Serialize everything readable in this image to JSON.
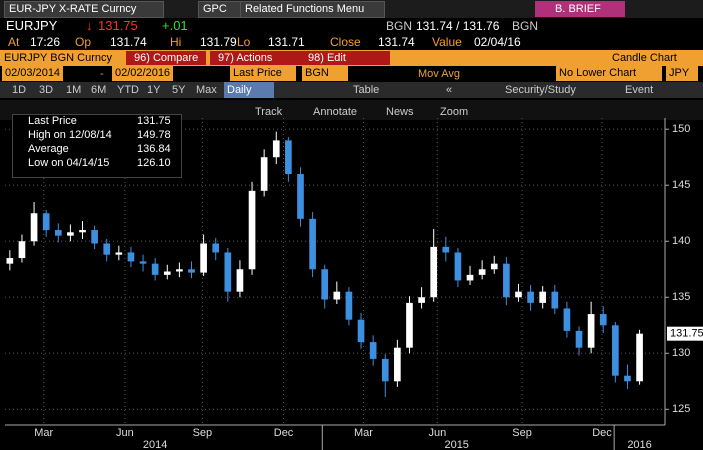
{
  "header": {
    "security": "EUR-JPY X-RATE Curncy",
    "gpc": "GPC",
    "menu": "Related Functions Menu",
    "brief": "B. BRIEF"
  },
  "quote": {
    "ticker": "EURJPY",
    "arrow": "↓",
    "last": "131.75",
    "change": "+.01",
    "bid_src": "BGN",
    "bidask": "131.74 / 131.76",
    "ask_src": "BGN"
  },
  "stats": [
    [
      "At",
      "17:26"
    ],
    [
      "Op",
      "131.74"
    ],
    [
      "Hi",
      "131.79"
    ],
    [
      "Lo",
      "131.71"
    ],
    [
      "Close",
      "131.74"
    ],
    [
      "Value",
      "02/04/16"
    ]
  ],
  "toolbar": {
    "name": "EURJPY BGN Curncy",
    "buttons": [
      "96) Compare",
      "97) Actions",
      "98) Edit"
    ],
    "chart_type": "Candle Chart"
  },
  "settings": {
    "start": "02/03/2014",
    "dash": "-",
    "end": "02/02/2016",
    "field": "Last Price",
    "source": "BGN",
    "study": "Mov Avg",
    "lower": "No Lower Chart",
    "currency": "JPY"
  },
  "periods": [
    "1D",
    "3D",
    "1M",
    "6M",
    "YTD",
    "1Y",
    "5Y",
    "Max"
  ],
  "frequency": "Daily",
  "table": "Table",
  "collapse": "«",
  "security_study": "Security/Study",
  "event": "Event",
  "tools": [
    "Track",
    "Annotate",
    "News",
    "Zoom"
  ],
  "legend": [
    [
      "Last Price",
      "131.75"
    ],
    [
      "High on 12/08/14",
      "149.78"
    ],
    [
      "Average",
      "136.84"
    ],
    [
      "Low on 04/14/15",
      "126.10"
    ]
  ],
  "chart_data": {
    "type": "candlestick",
    "price_tag": "131.75",
    "open": [
      138.0,
      138.5,
      140.0,
      142.5,
      141.0,
      140.5,
      140.8,
      141.0,
      139.8,
      138.8,
      139.0,
      138.2,
      138.0,
      137.0,
      137.3,
      137.5,
      137.2,
      139.8,
      139.0,
      135.5,
      137.5,
      144.5,
      147.5,
      149.0,
      146.0,
      142.0,
      137.5,
      134.8,
      135.5,
      133.0,
      131.0,
      129.5,
      127.5,
      130.5,
      134.5,
      135.0,
      139.5,
      139.0,
      136.5,
      137.0,
      137.5,
      138.0,
      135.0,
      135.5,
      134.5,
      135.5,
      134.0,
      132.0,
      130.5,
      133.5,
      132.5,
      128.0,
      127.5
    ],
    "high": [
      139.2,
      140.6,
      143.5,
      142.8,
      141.6,
      141.5,
      141.8,
      141.4,
      140.2,
      139.6,
      139.5,
      138.8,
      138.5,
      137.9,
      138.1,
      138.2,
      140.6,
      140.3,
      139.4,
      138.3,
      145.3,
      148.2,
      149.78,
      149.3,
      146.6,
      142.6,
      137.9,
      136.4,
      135.9,
      133.6,
      131.6,
      129.9,
      131.2,
      135.1,
      135.9,
      141.1,
      140.4,
      139.4,
      137.8,
      138.3,
      138.7,
      138.6,
      136.2,
      136.1,
      136.0,
      136.1,
      134.6,
      132.4,
      134.6,
      134.2,
      132.8,
      129.0,
      132.1
    ],
    "low": [
      137.4,
      138.1,
      139.6,
      140.4,
      139.9,
      140.0,
      140.2,
      139.3,
      138.2,
      138.3,
      137.7,
      137.3,
      136.5,
      136.6,
      136.8,
      136.7,
      136.9,
      138.3,
      134.6,
      135.0,
      137.0,
      144.0,
      146.9,
      145.3,
      141.3,
      136.8,
      134.0,
      134.4,
      132.5,
      130.4,
      128.9,
      126.1,
      127.0,
      130.0,
      134.0,
      134.6,
      138.2,
      135.9,
      136.1,
      136.6,
      137.1,
      134.3,
      134.6,
      133.8,
      134.0,
      133.5,
      131.4,
      129.8,
      130.0,
      131.8,
      127.4,
      126.8,
      127.2
    ],
    "close": [
      138.5,
      140.0,
      142.5,
      141.0,
      140.5,
      140.8,
      141.0,
      139.8,
      138.8,
      139.0,
      138.2,
      138.0,
      137.0,
      137.3,
      137.5,
      137.2,
      139.8,
      139.0,
      135.5,
      137.5,
      144.5,
      147.5,
      149.0,
      146.0,
      142.0,
      137.5,
      134.8,
      135.5,
      133.0,
      131.0,
      129.5,
      127.5,
      130.5,
      134.5,
      135.0,
      139.5,
      139.0,
      136.5,
      137.0,
      137.5,
      138.0,
      135.0,
      135.5,
      134.5,
      135.5,
      134.0,
      132.0,
      130.5,
      133.5,
      132.5,
      128.0,
      127.5,
      131.75
    ],
    "up_color": "#ffffff",
    "down_color": "#3d8fe0",
    "xlim": [
      -0.4,
      54.1
    ],
    "ylim": [
      123.6,
      151
    ],
    "yticks": [
      125,
      130,
      135,
      140,
      145,
      150
    ],
    "xticks": [
      {
        "value": 2.8,
        "label": "Mar"
      },
      {
        "value": 9.5,
        "label": "Jun"
      },
      {
        "value": 15.9,
        "label": "Sep"
      },
      {
        "value": 22.6,
        "label": "Dec"
      },
      {
        "value": 29.2,
        "label": "Mar"
      },
      {
        "value": 35.3,
        "label": "Jun"
      },
      {
        "value": 42.3,
        "label": "Sep"
      },
      {
        "value": 48.9,
        "label": "Dec"
      }
    ],
    "years": [
      {
        "value": 12,
        "label": "2014"
      },
      {
        "value": 36.9,
        "label": "2015"
      },
      {
        "value": 52,
        "label": "2016"
      }
    ],
    "year_breaks": [
      25.8,
      49.9
    ],
    "grid": true
  }
}
